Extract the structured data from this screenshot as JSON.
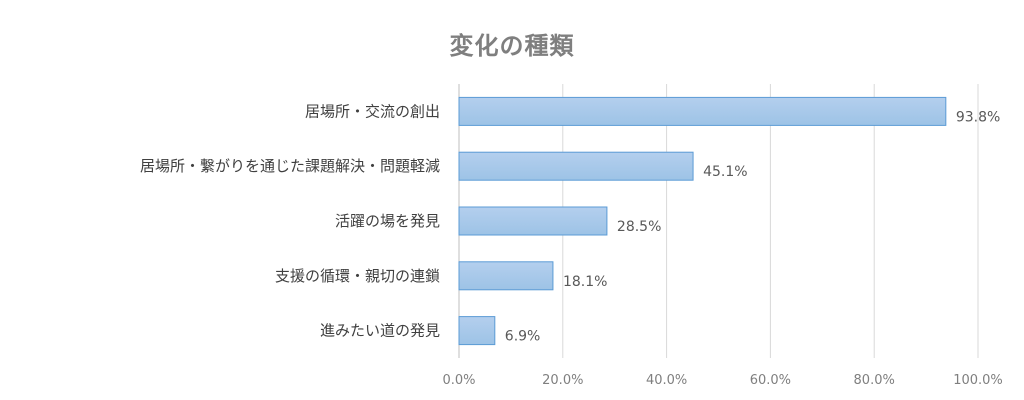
{
  "chart_data": {
    "type": "bar",
    "orientation": "horizontal",
    "title": "変化の種類",
    "categories": [
      "居場所・交流の創出",
      "居場所・繋がりを通じた課題解決・問題軽減",
      "活躍の場を発見",
      "支援の循環・親切の連鎖",
      "進みたい道の発見"
    ],
    "values": [
      93.8,
      45.1,
      28.5,
      18.1,
      6.9
    ],
    "value_labels": [
      "93.8%",
      "45.1%",
      "28.5%",
      "18.1%",
      "6.9%"
    ],
    "xlim": [
      0,
      100
    ],
    "xticks": [
      0,
      20,
      40,
      60,
      80,
      100
    ],
    "xtick_labels": [
      "0.0%",
      "20.0%",
      "40.0%",
      "60.0%",
      "80.0%",
      "100.0%"
    ],
    "grid": true,
    "legend": "none",
    "bar_color": "#9dc3e6",
    "bar_gradient_top": "#b4cfee",
    "bar_border": "#5b9bd5",
    "grid_color": "#d9d9d9"
  }
}
